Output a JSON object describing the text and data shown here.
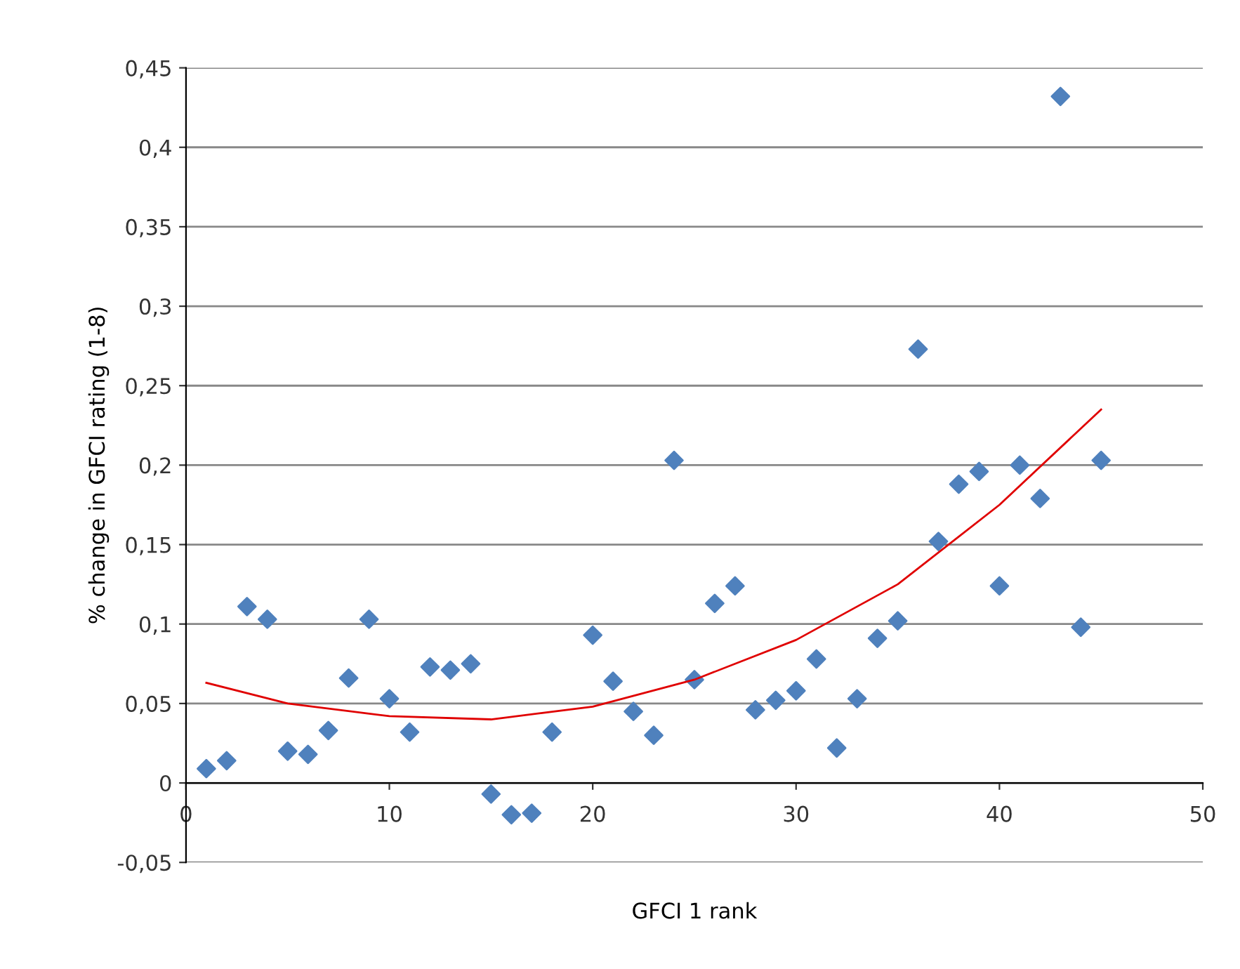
{
  "chart_data": {
    "type": "scatter",
    "xlabel": "GFCI 1 rank",
    "ylabel": "% change in GFCI rating (1-8)",
    "xlim": [
      0,
      50
    ],
    "xticks": [
      0,
      10,
      20,
      30,
      40,
      50
    ],
    "ylim": [
      -0.05,
      0.45
    ],
    "yticks": [
      {
        "value": -0.05,
        "label": "-0,05"
      },
      {
        "value": 0,
        "label": "0"
      },
      {
        "value": 0.05,
        "label": "0,05"
      },
      {
        "value": 0.1,
        "label": "0,1"
      },
      {
        "value": 0.15,
        "label": "0,15"
      },
      {
        "value": 0.2,
        "label": "0,2"
      },
      {
        "value": 0.25,
        "label": "0,25"
      },
      {
        "value": 0.3,
        "label": "0,3"
      },
      {
        "value": 0.35,
        "label": "0,35"
      },
      {
        "value": 0.4,
        "label": "0,4"
      },
      {
        "value": 0.45,
        "label": "0,45"
      }
    ],
    "grid": "y",
    "legend": false,
    "series": [
      {
        "color": "#4f81bd",
        "marker": "diamond",
        "x": [
          1,
          2,
          3,
          4,
          5,
          6,
          7,
          8,
          9,
          10,
          11,
          12,
          13,
          14,
          15,
          16,
          17,
          18,
          20,
          21,
          22,
          23,
          24,
          25,
          26,
          27,
          28,
          29,
          30,
          31,
          32,
          33,
          34,
          35,
          36,
          37,
          38,
          39,
          40,
          41,
          42,
          43,
          44,
          45
        ],
        "values": [
          0.009,
          0.014,
          0.111,
          0.103,
          0.02,
          0.018,
          0.033,
          0.066,
          0.103,
          0.053,
          0.032,
          0.073,
          0.071,
          0.075,
          -0.007,
          -0.02,
          -0.019,
          0.032,
          0.093,
          0.064,
          0.045,
          0.03,
          0.203,
          0.065,
          0.113,
          0.124,
          0.046,
          0.052,
          0.058,
          0.078,
          0.022,
          0.053,
          0.091,
          0.102,
          0.273,
          0.152,
          0.188,
          0.196,
          0.124,
          0.2,
          0.179,
          0.432,
          0.098,
          0.203
        ]
      },
      {
        "type": "line",
        "color": "#e00000",
        "marker": "none",
        "line_style": "solid",
        "x": [
          1,
          5,
          10,
          15,
          20,
          25,
          30,
          35,
          40,
          45
        ],
        "values": [
          0.063,
          0.05,
          0.042,
          0.04,
          0.048,
          0.065,
          0.09,
          0.125,
          0.175,
          0.235
        ]
      }
    ]
  }
}
